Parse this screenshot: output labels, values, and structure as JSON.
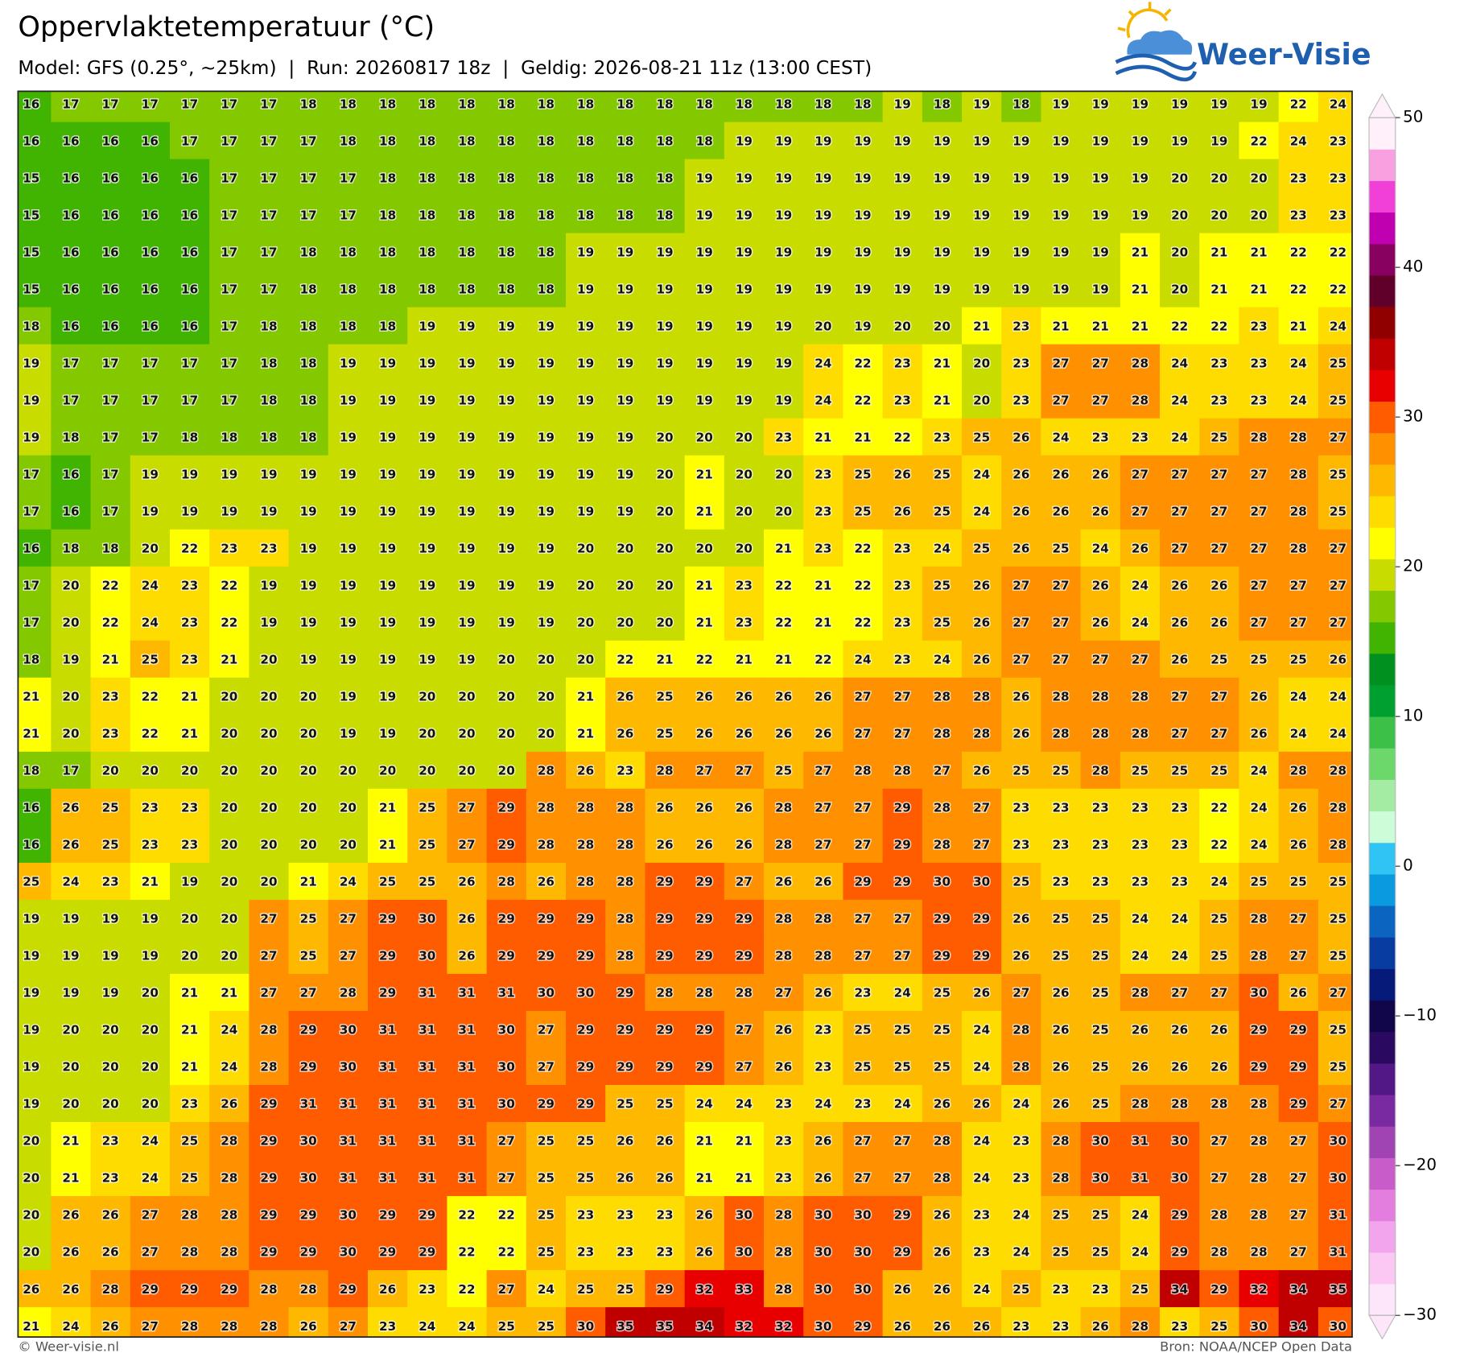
{
  "header": {
    "title": "Oppervlaktetemperatuur (°C)",
    "subtitle": "Model: GFS (0.25°, ~25km)  |  Run: 20260817 18z  |  Geldig: 2026-08-21 11z (13:00 CEST)",
    "logo": "Weer-Visie"
  },
  "map": {
    "values": [
      [
        16,
        17,
        17,
        17,
        17,
        17,
        17,
        18,
        18,
        18,
        18,
        18,
        18,
        18,
        18,
        18,
        18,
        18,
        18,
        18,
        18,
        18,
        19,
        18,
        19,
        18,
        19,
        19,
        19,
        19,
        19,
        19,
        22,
        24
      ],
      [
        16,
        16,
        16,
        16,
        17,
        17,
        17,
        17,
        18,
        18,
        18,
        18,
        18,
        18,
        18,
        18,
        18,
        18,
        19,
        19,
        19,
        19,
        19,
        19,
        19,
        19,
        19,
        19,
        19,
        19,
        19,
        22,
        24,
        23
      ],
      [
        15,
        16,
        16,
        16,
        16,
        17,
        17,
        17,
        17,
        18,
        18,
        18,
        18,
        18,
        18,
        18,
        18,
        19,
        19,
        19,
        19,
        19,
        19,
        19,
        19,
        19,
        19,
        19,
        19,
        20,
        20,
        20,
        23,
        23
      ],
      [
        15,
        16,
        16,
        16,
        16,
        17,
        17,
        17,
        17,
        18,
        18,
        18,
        18,
        18,
        18,
        18,
        18,
        19,
        19,
        19,
        19,
        19,
        19,
        19,
        19,
        19,
        19,
        19,
        19,
        20,
        20,
        20,
        23,
        23
      ],
      [
        15,
        16,
        16,
        16,
        16,
        17,
        17,
        18,
        18,
        18,
        18,
        18,
        18,
        18,
        19,
        19,
        19,
        19,
        19,
        19,
        19,
        19,
        19,
        19,
        19,
        19,
        19,
        19,
        21,
        20,
        21,
        21,
        22,
        22
      ],
      [
        15,
        16,
        16,
        16,
        16,
        17,
        17,
        18,
        18,
        18,
        18,
        18,
        18,
        18,
        19,
        19,
        19,
        19,
        19,
        19,
        19,
        19,
        19,
        19,
        19,
        19,
        19,
        19,
        21,
        20,
        21,
        21,
        22,
        22
      ],
      [
        18,
        16,
        16,
        16,
        16,
        17,
        18,
        18,
        18,
        18,
        19,
        19,
        19,
        19,
        19,
        19,
        19,
        19,
        19,
        19,
        20,
        19,
        20,
        20,
        21,
        23,
        21,
        21,
        21,
        22,
        22,
        23,
        21,
        24
      ],
      [
        19,
        17,
        17,
        17,
        17,
        17,
        18,
        18,
        19,
        19,
        19,
        19,
        19,
        19,
        19,
        19,
        19,
        19,
        19,
        19,
        24,
        22,
        23,
        21,
        20,
        23,
        27,
        27,
        28,
        24,
        23,
        23,
        24,
        25
      ],
      [
        19,
        17,
        17,
        17,
        17,
        17,
        18,
        18,
        19,
        19,
        19,
        19,
        19,
        19,
        19,
        19,
        19,
        19,
        19,
        19,
        24,
        22,
        23,
        21,
        20,
        23,
        27,
        27,
        28,
        24,
        23,
        23,
        24,
        25
      ],
      [
        19,
        18,
        17,
        17,
        18,
        18,
        18,
        18,
        19,
        19,
        19,
        19,
        19,
        19,
        19,
        19,
        20,
        20,
        20,
        23,
        21,
        21,
        22,
        23,
        25,
        26,
        24,
        23,
        23,
        24,
        25,
        28,
        28,
        27
      ],
      [
        17,
        16,
        17,
        19,
        19,
        19,
        19,
        19,
        19,
        19,
        19,
        19,
        19,
        19,
        19,
        19,
        20,
        21,
        20,
        20,
        23,
        25,
        26,
        25,
        24,
        26,
        26,
        26,
        27,
        27,
        27,
        27,
        28,
        25
      ],
      [
        17,
        16,
        17,
        19,
        19,
        19,
        19,
        19,
        19,
        19,
        19,
        19,
        19,
        19,
        19,
        19,
        20,
        21,
        20,
        20,
        23,
        25,
        26,
        25,
        24,
        26,
        26,
        26,
        27,
        27,
        27,
        27,
        28,
        25
      ],
      [
        16,
        18,
        18,
        20,
        22,
        23,
        23,
        19,
        19,
        19,
        19,
        19,
        19,
        19,
        20,
        20,
        20,
        20,
        20,
        21,
        23,
        22,
        23,
        24,
        25,
        26,
        25,
        24,
        26,
        27,
        27,
        27,
        28,
        27
      ],
      [
        17,
        20,
        22,
        24,
        23,
        22,
        19,
        19,
        19,
        19,
        19,
        19,
        19,
        19,
        20,
        20,
        20,
        21,
        23,
        22,
        21,
        22,
        23,
        25,
        26,
        27,
        27,
        26,
        24,
        26,
        26,
        27,
        27,
        27
      ],
      [
        17,
        20,
        22,
        24,
        23,
        22,
        19,
        19,
        19,
        19,
        19,
        19,
        19,
        19,
        20,
        20,
        20,
        21,
        23,
        22,
        21,
        22,
        23,
        25,
        26,
        27,
        27,
        26,
        24,
        26,
        26,
        27,
        27,
        27
      ],
      [
        18,
        19,
        21,
        25,
        23,
        21,
        20,
        19,
        19,
        19,
        19,
        19,
        20,
        20,
        20,
        22,
        21,
        22,
        21,
        21,
        22,
        24,
        23,
        24,
        26,
        27,
        27,
        27,
        27,
        26,
        25,
        25,
        25,
        26
      ],
      [
        21,
        20,
        23,
        22,
        21,
        20,
        20,
        20,
        19,
        19,
        20,
        20,
        20,
        20,
        21,
        26,
        25,
        26,
        26,
        26,
        26,
        27,
        27,
        28,
        28,
        26,
        28,
        28,
        28,
        27,
        27,
        26,
        24,
        24
      ],
      [
        21,
        20,
        23,
        22,
        21,
        20,
        20,
        20,
        19,
        19,
        20,
        20,
        20,
        20,
        21,
        26,
        25,
        26,
        26,
        26,
        26,
        27,
        27,
        28,
        28,
        26,
        28,
        28,
        28,
        27,
        27,
        26,
        24,
        24
      ],
      [
        18,
        17,
        20,
        20,
        20,
        20,
        20,
        20,
        20,
        20,
        20,
        20,
        20,
        28,
        26,
        23,
        28,
        27,
        27,
        25,
        27,
        28,
        28,
        27,
        26,
        25,
        25,
        28,
        25,
        25,
        25,
        24,
        28,
        28
      ],
      [
        16,
        26,
        25,
        23,
        23,
        20,
        20,
        20,
        20,
        21,
        25,
        27,
        29,
        28,
        28,
        28,
        26,
        26,
        26,
        28,
        27,
        27,
        29,
        28,
        27,
        23,
        23,
        23,
        23,
        23,
        22,
        24,
        26,
        28
      ],
      [
        16,
        26,
        25,
        23,
        23,
        20,
        20,
        20,
        20,
        21,
        25,
        27,
        29,
        28,
        28,
        28,
        26,
        26,
        26,
        28,
        27,
        27,
        29,
        28,
        27,
        23,
        23,
        23,
        23,
        23,
        22,
        24,
        26,
        28
      ],
      [
        25,
        24,
        23,
        21,
        19,
        20,
        20,
        21,
        24,
        25,
        25,
        26,
        28,
        26,
        28,
        28,
        29,
        29,
        27,
        26,
        26,
        29,
        29,
        30,
        30,
        25,
        23,
        23,
        23,
        23,
        24,
        25,
        25,
        25
      ],
      [
        19,
        19,
        19,
        19,
        20,
        20,
        27,
        25,
        27,
        29,
        30,
        26,
        29,
        29,
        29,
        28,
        29,
        29,
        29,
        28,
        28,
        27,
        27,
        29,
        29,
        26,
        25,
        25,
        24,
        24,
        25,
        28,
        27,
        25
      ],
      [
        19,
        19,
        19,
        19,
        20,
        20,
        27,
        25,
        27,
        29,
        30,
        26,
        29,
        29,
        29,
        28,
        29,
        29,
        29,
        28,
        28,
        27,
        27,
        29,
        29,
        26,
        25,
        25,
        24,
        24,
        25,
        28,
        27,
        25
      ],
      [
        19,
        19,
        19,
        20,
        21,
        21,
        27,
        27,
        28,
        29,
        31,
        31,
        31,
        30,
        30,
        29,
        28,
        28,
        28,
        27,
        26,
        23,
        24,
        25,
        26,
        27,
        26,
        25,
        28,
        27,
        27,
        30,
        26,
        27
      ],
      [
        19,
        20,
        20,
        20,
        21,
        24,
        28,
        29,
        30,
        31,
        31,
        31,
        30,
        27,
        29,
        29,
        29,
        29,
        27,
        26,
        23,
        25,
        25,
        25,
        24,
        28,
        26,
        25,
        26,
        26,
        26,
        29,
        29,
        25
      ],
      [
        19,
        20,
        20,
        20,
        21,
        24,
        28,
        29,
        30,
        31,
        31,
        31,
        30,
        27,
        29,
        29,
        29,
        29,
        27,
        26,
        23,
        25,
        25,
        25,
        24,
        28,
        26,
        25,
        26,
        26,
        26,
        29,
        29,
        25
      ],
      [
        19,
        20,
        20,
        20,
        23,
        26,
        29,
        31,
        31,
        31,
        31,
        31,
        30,
        29,
        29,
        25,
        25,
        24,
        24,
        23,
        24,
        23,
        24,
        26,
        26,
        24,
        26,
        25,
        28,
        28,
        28,
        28,
        29,
        27
      ],
      [
        20,
        21,
        23,
        24,
        25,
        28,
        29,
        30,
        31,
        31,
        31,
        31,
        27,
        25,
        25,
        26,
        26,
        21,
        21,
        23,
        26,
        27,
        27,
        28,
        24,
        23,
        28,
        30,
        31,
        30,
        27,
        28,
        27,
        30
      ],
      [
        20,
        21,
        23,
        24,
        25,
        28,
        29,
        30,
        31,
        31,
        31,
        31,
        27,
        25,
        25,
        26,
        26,
        21,
        21,
        23,
        26,
        27,
        27,
        28,
        24,
        23,
        28,
        30,
        31,
        30,
        27,
        28,
        27,
        30
      ],
      [
        20,
        26,
        26,
        27,
        28,
        28,
        29,
        29,
        30,
        29,
        29,
        22,
        22,
        25,
        23,
        23,
        23,
        26,
        30,
        28,
        30,
        30,
        29,
        26,
        23,
        24,
        25,
        25,
        24,
        29,
        28,
        28,
        27,
        31
      ],
      [
        20,
        26,
        26,
        27,
        28,
        28,
        29,
        29,
        30,
        29,
        29,
        22,
        22,
        25,
        23,
        23,
        23,
        26,
        30,
        28,
        30,
        30,
        29,
        26,
        23,
        24,
        25,
        25,
        24,
        29,
        28,
        28,
        27,
        31
      ],
      [
        26,
        26,
        28,
        29,
        29,
        29,
        28,
        28,
        29,
        26,
        23,
        22,
        27,
        24,
        25,
        25,
        29,
        32,
        33,
        28,
        30,
        30,
        26,
        26,
        24,
        25,
        23,
        23,
        25,
        34,
        29,
        32,
        34,
        35
      ],
      [
        21,
        24,
        26,
        27,
        28,
        28,
        28,
        26,
        27,
        23,
        24,
        24,
        25,
        25,
        30,
        35,
        35,
        34,
        32,
        32,
        30,
        29,
        26,
        26,
        26,
        23,
        23,
        26,
        28,
        23,
        25,
        30,
        34,
        30
      ]
    ]
  },
  "colorbar": {
    "ticks": [
      50,
      40,
      30,
      20,
      10,
      0,
      {
        "value": -10,
        "label": "−10"
      },
      {
        "value": -20,
        "label": "−20"
      },
      {
        "value": -30,
        "label": "−30"
      }
    ],
    "colors": [
      "#fde6fa",
      "#fbc8f4",
      "#f2a4ec",
      "#e47ede",
      "#c85cc8",
      "#a044b4",
      "#7a2aa0",
      "#521886",
      "#2a0a60",
      "#12064a",
      "#061a7a",
      "#083ca0",
      "#0a64c0",
      "#0a9ae0",
      "#30c4f4",
      "#ccfcd8",
      "#a4eca4",
      "#6cd86c",
      "#3cc048",
      "#00a030",
      "#009020",
      "#40b400",
      "#84c800",
      "#c8dc00",
      "#ffff00",
      "#ffdc00",
      "#ffb800",
      "#ff9000",
      "#ff5c00",
      "#e80000",
      "#c00000",
      "#900000",
      "#60002a",
      "#880060",
      "#c000b0",
      "#f040d8",
      "#f8a0e0",
      "#fff0fa"
    ]
  },
  "footer": {
    "left": "© Weer-visie.nl",
    "right": "Bron: NOAA/NCEP Open Data"
  }
}
